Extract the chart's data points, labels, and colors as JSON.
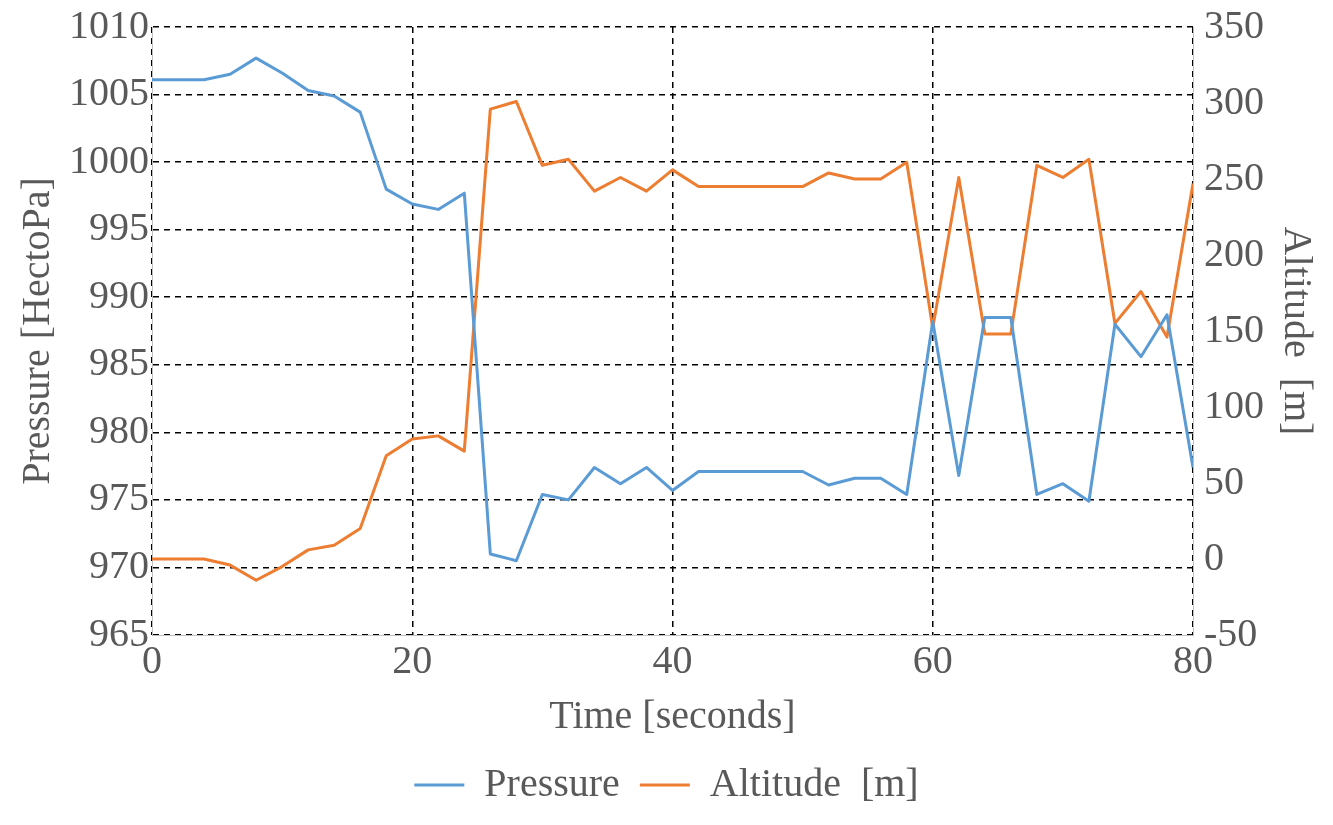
{
  "chart_data": {
    "type": "line",
    "xlabel": "Time [seconds]",
    "ylabel": "Pressure [HectoPa]",
    "y2label": "Altitude  [m]",
    "x": [
      0,
      2,
      4,
      6,
      8,
      10,
      12,
      14,
      16,
      18,
      20,
      22,
      24,
      26,
      28,
      30,
      32,
      34,
      36,
      38,
      40,
      42,
      44,
      46,
      48,
      50,
      52,
      54,
      56,
      58,
      60,
      62,
      64,
      66,
      68,
      70,
      72,
      74,
      76,
      78,
      80
    ],
    "series": [
      {
        "name": "Pressure",
        "color": "#5b9bd5",
        "values": [
          1006.1,
          1006.1,
          1006.1,
          1006.5,
          1007.7,
          1006.6,
          1005.3,
          1004.9,
          1003.7,
          998.0,
          996.9,
          996.5,
          997.7,
          971.0,
          970.5,
          975.4,
          975.0,
          977.4,
          976.2,
          977.4,
          975.7,
          977.1,
          977.1,
          977.1,
          977.1,
          977.1,
          976.1,
          976.6,
          976.6,
          975.4,
          988.2,
          976.8,
          988.5,
          988.5,
          975.4,
          976.2,
          974.9,
          988.0,
          985.6,
          988.7,
          977.4
        ]
      },
      {
        "name": "Altitude  [m]",
        "color": "#ed7d31",
        "axis": "y2",
        "values": [
          0,
          0,
          0,
          -4,
          -14,
          -5,
          6,
          9,
          20,
          68,
          79,
          81,
          71,
          296,
          301,
          259,
          263,
          242,
          251,
          242,
          256,
          245,
          245,
          245,
          245,
          245,
          254,
          250,
          250,
          261,
          152,
          251,
          148,
          148,
          259,
          251,
          263,
          155,
          176,
          146,
          247
        ]
      }
    ],
    "xlim": [
      0,
      80
    ],
    "xticks": [
      0,
      20,
      40,
      60,
      80
    ],
    "ylim": [
      965,
      1010
    ],
    "yticks": [
      965,
      970,
      975,
      980,
      985,
      990,
      995,
      1000,
      1005,
      1010
    ],
    "y2lim": [
      -50,
      350
    ],
    "y2ticks": [
      -50,
      0,
      50,
      100,
      150,
      200,
      250,
      300,
      350
    ],
    "grid": true,
    "legend": "bottom",
    "marker": "none",
    "line_style": "solid"
  }
}
